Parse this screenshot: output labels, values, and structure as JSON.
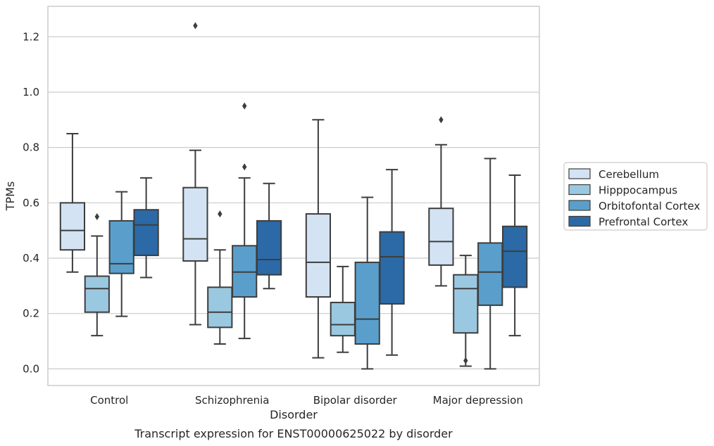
{
  "chart_data": {
    "type": "box",
    "title": "",
    "caption": "Transcript expression for ENST00000625022 by disorder",
    "xlabel": "Disorder",
    "ylabel": "TPMs",
    "ylim": [
      -0.06,
      1.31
    ],
    "yticks": [
      "0.0",
      "0.2",
      "0.4",
      "0.6",
      "0.8",
      "1.0",
      "1.2"
    ],
    "grid": "horizontal",
    "legend_position": "right",
    "categories": [
      "Control",
      "Schizophrenia",
      "Bipolar disorder",
      "Major depression"
    ],
    "series": [
      {
        "name": "Cerebellum",
        "color": "#d3e3f3",
        "boxes": [
          {
            "whislo": 0.35,
            "q1": 0.43,
            "med": 0.5,
            "q3": 0.6,
            "whishi": 0.85,
            "fliers": []
          },
          {
            "whislo": 0.16,
            "q1": 0.39,
            "med": 0.47,
            "q3": 0.655,
            "whishi": 0.79,
            "fliers": [
              1.24
            ]
          },
          {
            "whislo": 0.04,
            "q1": 0.26,
            "med": 0.385,
            "q3": 0.56,
            "whishi": 0.9,
            "fliers": []
          },
          {
            "whislo": 0.3,
            "q1": 0.375,
            "med": 0.46,
            "q3": 0.58,
            "whishi": 0.81,
            "fliers": [
              0.9
            ]
          }
        ]
      },
      {
        "name": "Hipppocampus",
        "color": "#9ac8e0",
        "boxes": [
          {
            "whislo": 0.12,
            "q1": 0.205,
            "med": 0.29,
            "q3": 0.335,
            "whishi": 0.48,
            "fliers": [
              0.55
            ]
          },
          {
            "whislo": 0.09,
            "q1": 0.15,
            "med": 0.205,
            "q3": 0.295,
            "whishi": 0.43,
            "fliers": [
              0.56
            ]
          },
          {
            "whislo": 0.06,
            "q1": 0.12,
            "med": 0.16,
            "q3": 0.24,
            "whishi": 0.37,
            "fliers": []
          },
          {
            "whislo": 0.01,
            "q1": 0.13,
            "med": 0.29,
            "q3": 0.34,
            "whishi": 0.41,
            "fliers": [
              0.03
            ]
          }
        ]
      },
      {
        "name": "Orbitofontal Cortex",
        "color": "#5a9fcc",
        "boxes": [
          {
            "whislo": 0.19,
            "q1": 0.345,
            "med": 0.38,
            "q3": 0.535,
            "whishi": 0.64,
            "fliers": []
          },
          {
            "whislo": 0.11,
            "q1": 0.26,
            "med": 0.35,
            "q3": 0.445,
            "whishi": 0.69,
            "fliers": [
              0.73,
              0.95
            ]
          },
          {
            "whislo": 0.0,
            "q1": 0.09,
            "med": 0.18,
            "q3": 0.385,
            "whishi": 0.62,
            "fliers": []
          },
          {
            "whislo": 0.0,
            "q1": 0.23,
            "med": 0.35,
            "q3": 0.455,
            "whishi": 0.76,
            "fliers": []
          }
        ]
      },
      {
        "name": "Prefrontal Cortex",
        "color": "#2b6aa6",
        "boxes": [
          {
            "whislo": 0.33,
            "q1": 0.41,
            "med": 0.52,
            "q3": 0.575,
            "whishi": 0.69,
            "fliers": []
          },
          {
            "whislo": 0.29,
            "q1": 0.34,
            "med": 0.395,
            "q3": 0.535,
            "whishi": 0.67,
            "fliers": []
          },
          {
            "whislo": 0.05,
            "q1": 0.235,
            "med": 0.405,
            "q3": 0.495,
            "whishi": 0.72,
            "fliers": []
          },
          {
            "whislo": 0.12,
            "q1": 0.295,
            "med": 0.425,
            "q3": 0.515,
            "whishi": 0.7,
            "fliers": []
          }
        ]
      }
    ]
  }
}
